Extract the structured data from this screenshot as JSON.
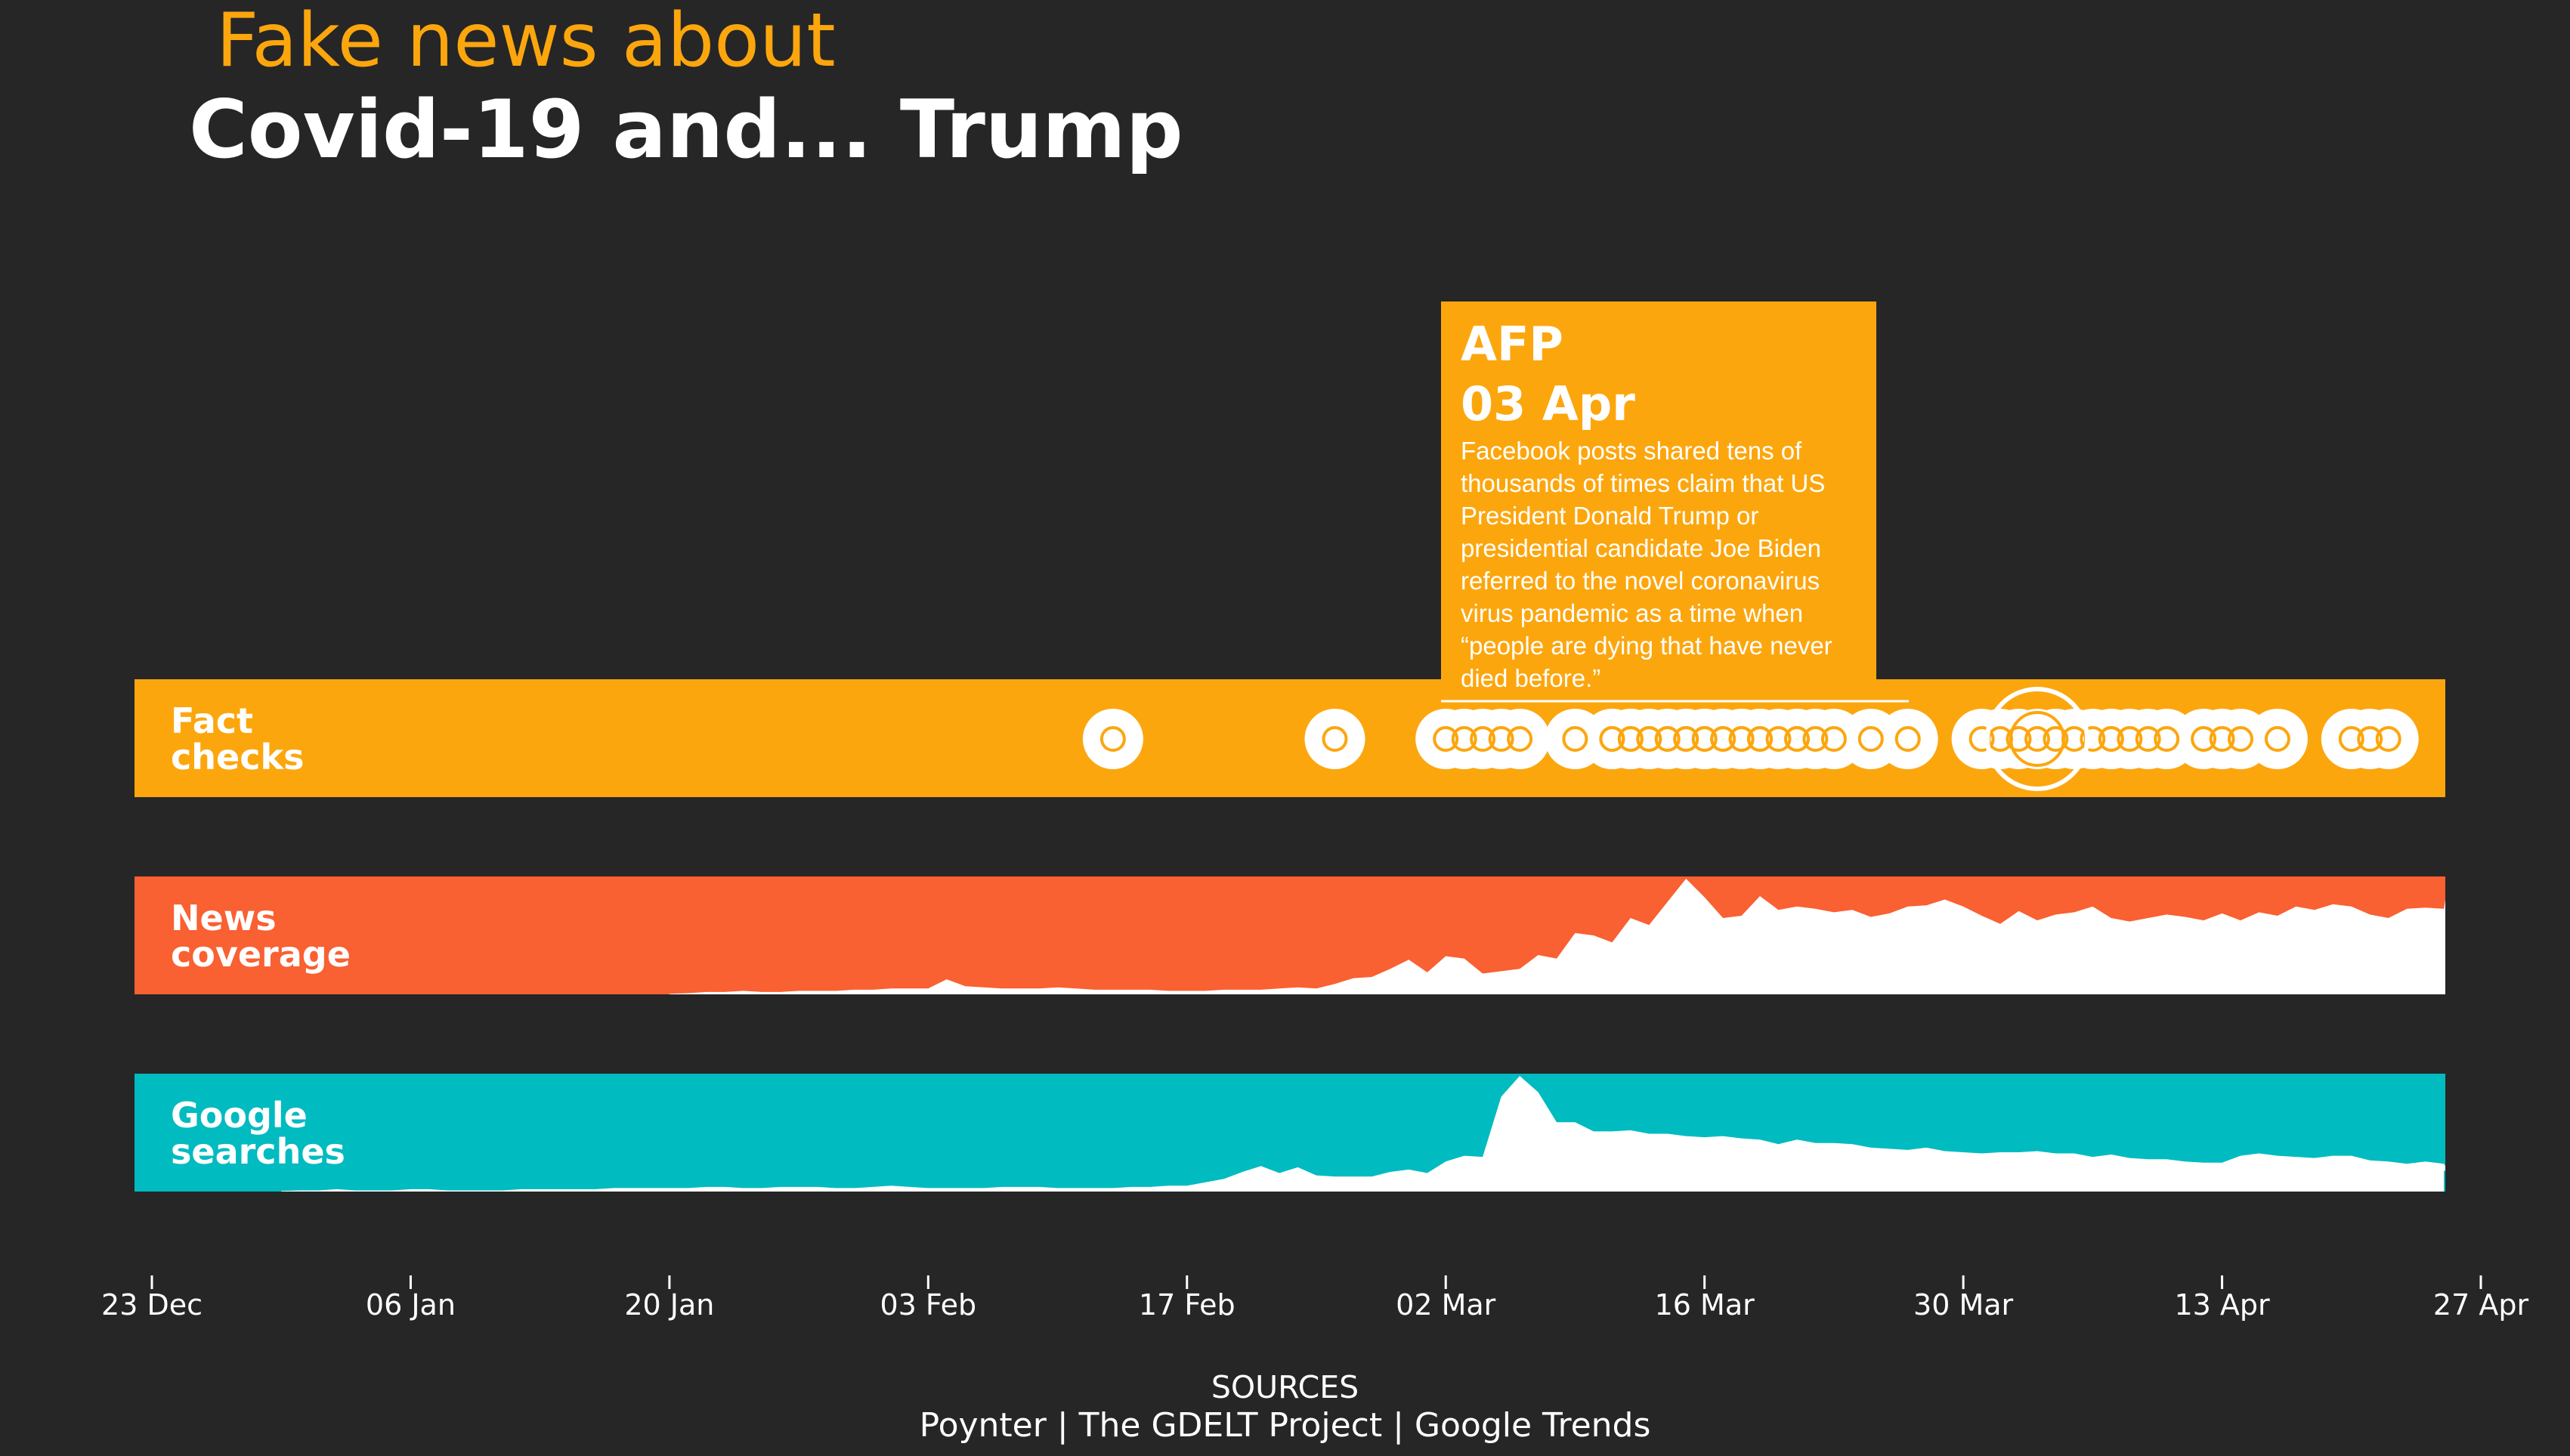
{
  "title": {
    "line1": "Fake news about",
    "line2": "Covid-19 and... Trump"
  },
  "colors": {
    "background": "#262626",
    "fact_checks": "#fca60e",
    "news_coverage": "#f96032",
    "google_searches": "#00bbc0",
    "fill": "#ffffff"
  },
  "tooltip": {
    "source": "AFP",
    "date": "03 Apr",
    "text": "Facebook posts shared tens of thousands of times claim that US President Donald Trump or presidential candidate Joe Biden referred to the novel coronavirus virus pandemic as a time when “people are dying that have never died before.”"
  },
  "sources": {
    "title": "SOURCES",
    "list": "Poynter | The GDELT Project | Google Trends"
  },
  "chart_data": {
    "type": "area",
    "x_axis": {
      "start": "2019-12-23",
      "end": "2020-04-27",
      "ticks": [
        {
          "date": "2019-12-23",
          "label": "23 Dec"
        },
        {
          "date": "2020-01-06",
          "label": "06 Jan"
        },
        {
          "date": "2020-01-20",
          "label": "20 Jan"
        },
        {
          "date": "2020-02-03",
          "label": "03 Feb"
        },
        {
          "date": "2020-02-17",
          "label": "17 Feb"
        },
        {
          "date": "2020-03-02",
          "label": "02 Mar"
        },
        {
          "date": "2020-03-16",
          "label": "16 Mar"
        },
        {
          "date": "2020-03-30",
          "label": "30 Mar"
        },
        {
          "date": "2020-04-13",
          "label": "13 Apr"
        },
        {
          "date": "2020-04-27",
          "label": "27 Apr"
        }
      ]
    },
    "panels": [
      {
        "label": "Fact checks",
        "kind": "events",
        "highlighted": "2020-04-03",
        "events": [
          "2020-02-13",
          "2020-02-25",
          "2020-03-02",
          "2020-03-03",
          "2020-03-04",
          "2020-03-05",
          "2020-03-06",
          "2020-03-09",
          "2020-03-11",
          "2020-03-11",
          "2020-03-12",
          "2020-03-12",
          "2020-03-13",
          "2020-03-13",
          "2020-03-14",
          "2020-03-14",
          "2020-03-15",
          "2020-03-15",
          "2020-03-16",
          "2020-03-16",
          "2020-03-17",
          "2020-03-17",
          "2020-03-18",
          "2020-03-18",
          "2020-03-19",
          "2020-03-19",
          "2020-03-20",
          "2020-03-21",
          "2020-03-21",
          "2020-03-22",
          "2020-03-23",
          "2020-03-25",
          "2020-03-27",
          "2020-03-31",
          "2020-04-01",
          "2020-04-02",
          "2020-04-03",
          "2020-04-04",
          "2020-04-05",
          "2020-04-06",
          "2020-04-07",
          "2020-04-07",
          "2020-04-08",
          "2020-04-09",
          "2020-04-10",
          "2020-04-12",
          "2020-04-13",
          "2020-04-14",
          "2020-04-16",
          "2020-04-20",
          "2020-04-21",
          "2020-04-22"
        ]
      },
      {
        "label": "News coverage",
        "kind": "area",
        "start": "2020-01-20",
        "values": [
          0.5,
          1,
          2,
          2,
          3,
          2,
          2,
          3,
          3,
          3,
          4,
          4,
          5,
          5,
          5,
          13,
          7,
          6,
          5,
          5,
          5,
          6,
          5,
          4,
          4,
          4,
          4,
          3,
          3,
          3,
          4,
          4,
          4,
          5,
          6,
          5,
          9,
          14,
          15,
          22,
          30,
          19,
          33,
          31,
          18,
          20,
          22,
          34,
          31,
          53,
          51,
          45,
          66,
          60,
          80,
          100,
          84,
          66,
          68,
          85,
          73,
          76,
          74,
          71,
          73,
          67,
          70,
          76,
          77,
          82,
          76,
          68,
          61,
          72,
          64,
          69,
          71,
          76,
          66,
          63,
          66,
          69,
          67,
          64,
          70,
          64,
          71,
          68,
          76,
          73,
          78,
          76,
          69,
          66,
          74,
          75,
          74,
          82,
          78
        ],
        "max_value": 100
      },
      {
        "label": "Google searches",
        "kind": "area",
        "start": "2019-12-30",
        "end": "2020-04-25",
        "values": [
          0.5,
          1,
          1,
          2,
          1,
          1,
          1,
          2,
          2,
          1,
          1,
          1,
          1,
          2,
          2,
          2,
          2,
          2,
          3,
          3,
          3,
          3,
          3,
          4,
          4,
          3,
          3,
          4,
          4,
          4,
          3,
          3,
          4,
          5,
          4,
          3,
          3,
          3,
          3,
          4,
          4,
          4,
          3,
          3,
          3,
          3,
          4,
          4,
          5,
          5,
          8,
          11,
          17,
          22,
          16,
          21,
          14,
          13,
          13,
          13,
          17,
          19,
          16,
          26,
          31,
          30,
          82,
          100,
          86,
          60,
          60,
          52,
          52,
          53,
          50,
          50,
          48,
          47,
          48,
          46,
          45,
          41,
          45,
          42,
          42,
          41,
          38,
          37,
          36,
          38,
          35,
          34,
          33,
          34,
          34,
          35,
          33,
          33,
          30,
          32,
          29,
          28,
          28,
          26,
          25,
          25,
          31,
          33,
          31,
          30,
          29,
          31,
          31,
          27,
          26,
          24,
          26,
          24,
          22,
          23,
          21,
          22,
          21,
          22,
          18,
          18
        ],
        "max_value": 100
      }
    ]
  }
}
